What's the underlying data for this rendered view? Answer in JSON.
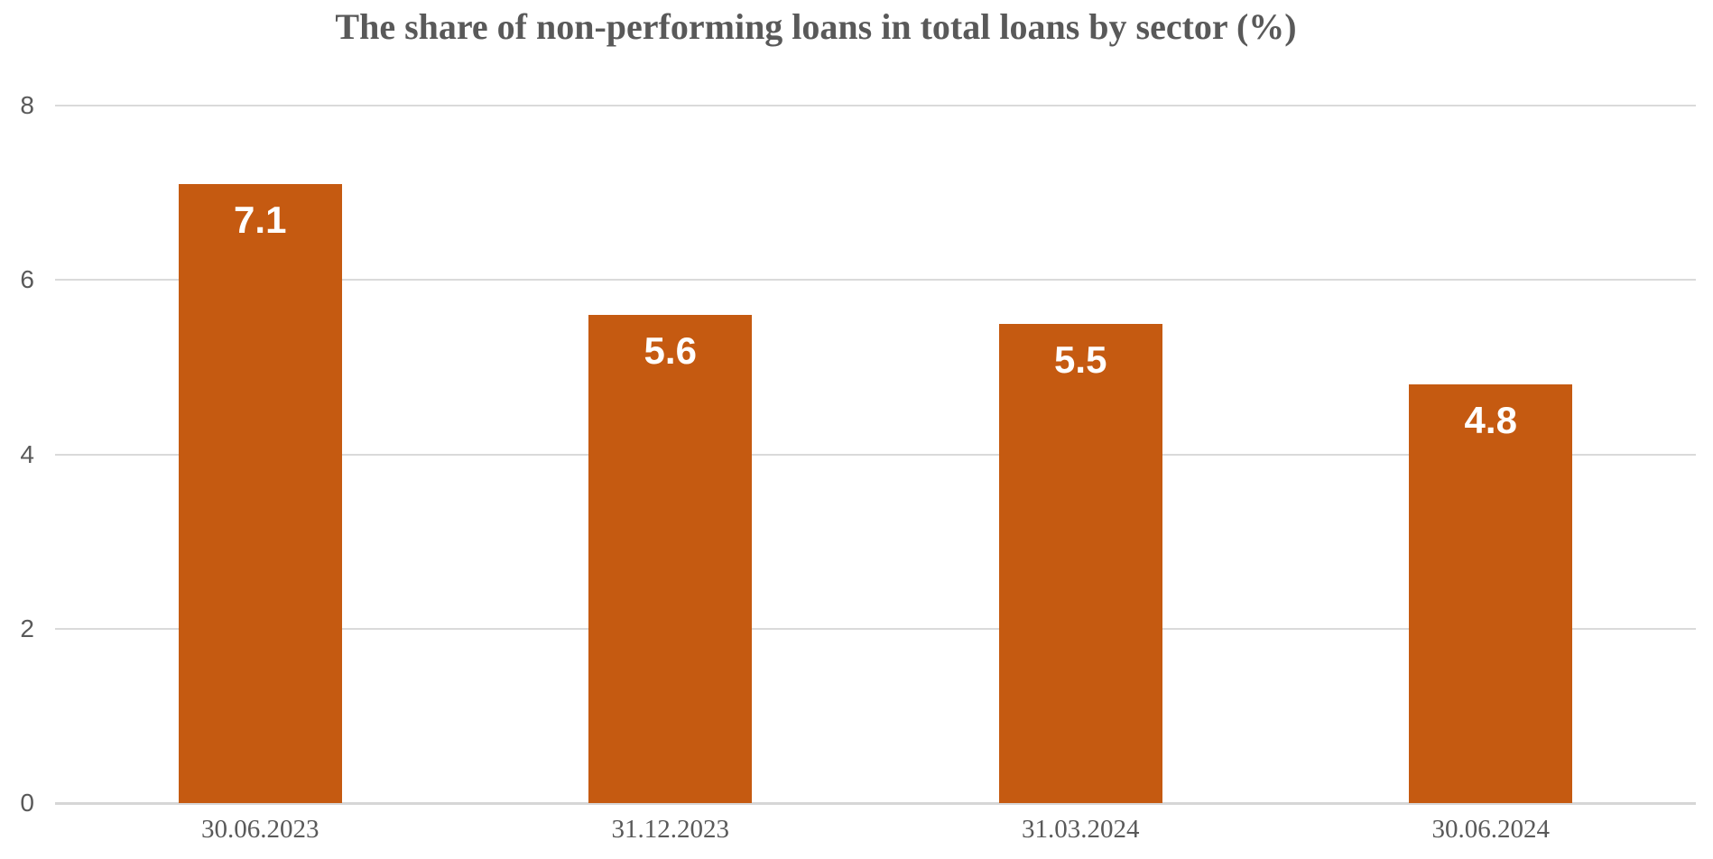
{
  "title": "The share of non-performing loans in total loans by sector (%)",
  "colors": {
    "bar": "#c55a11",
    "title_text": "#595959",
    "axis_text": "#595959",
    "gridline": "#dadada",
    "value_label": "#ffffff",
    "background": "#ffffff"
  },
  "chart_data": {
    "type": "bar",
    "title": "The share of non-performing loans in total loans by sector (%)",
    "categories": [
      "30.06.2023",
      "31.12.2023",
      "31.03.2024",
      "30.06.2024"
    ],
    "values": [
      7.1,
      5.6,
      5.5,
      4.8
    ],
    "xlabel": "",
    "ylabel": "",
    "ylim": [
      0,
      8
    ],
    "yticks": [
      0,
      2,
      4,
      6,
      8
    ],
    "grid": "horizontal-only",
    "legend": "none",
    "value_labels": "inside-top-white-bold"
  }
}
